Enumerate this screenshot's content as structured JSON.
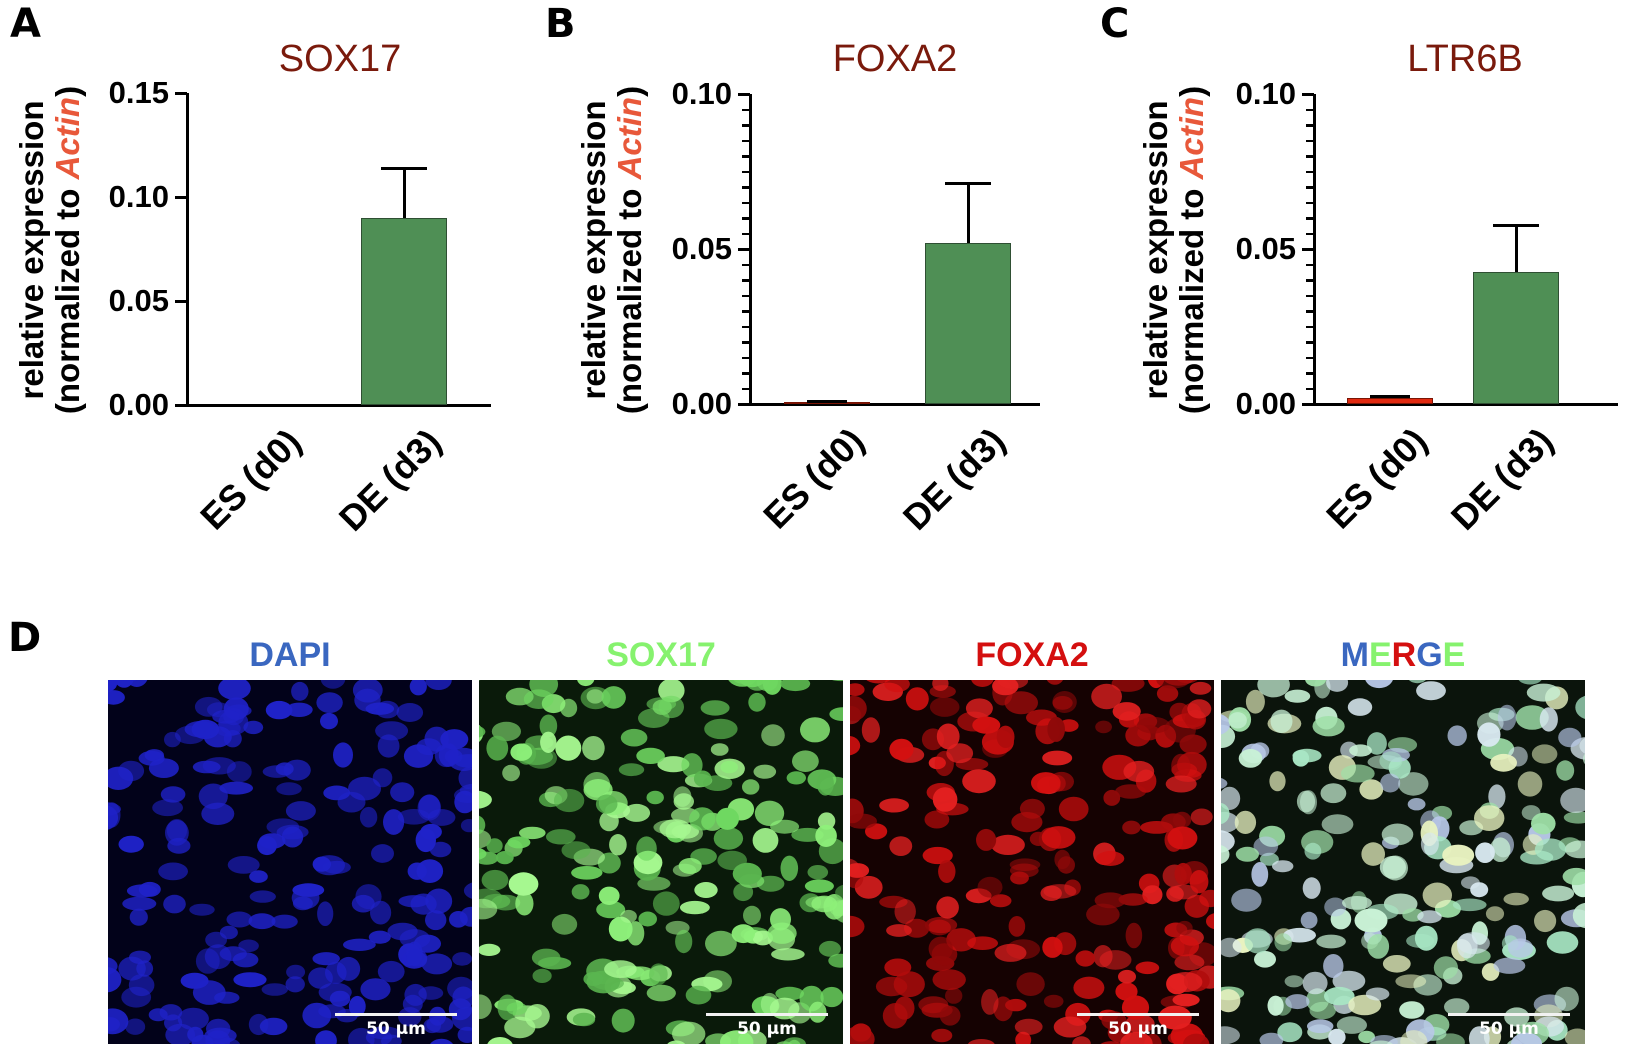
{
  "figure": {
    "panel_letters": [
      "A",
      "B",
      "C",
      "D"
    ],
    "ylabel_line1": "relative expression",
    "ylabel_line2_prefix": "(normalized to ",
    "ylabel_line2_gene": "Actin",
    "ylabel_line2_suffix": ")",
    "colors": {
      "title": "#7a1a0c",
      "actin": "#e8583a",
      "de_bar": "#4f8f55",
      "es_bar": "#e02a10"
    }
  },
  "chart_data": [
    {
      "type": "bar",
      "panel": "A",
      "title": "SOX17",
      "categories": [
        "ES (d0)",
        "DE (d3)"
      ],
      "values": [
        0.0,
        0.09
      ],
      "error_upper": [
        0.0,
        0.1135
      ],
      "ylabel": "relative expression (normalized to Actin)",
      "xlabel": "",
      "ylim": [
        0,
        0.15
      ],
      "yticks": [
        "0.00",
        "0.05",
        "0.10",
        "0.15"
      ],
      "minor_ticks": false,
      "grid": false,
      "legend": null
    },
    {
      "type": "bar",
      "panel": "B",
      "title": "FOXA2",
      "categories": [
        "ES (d0)",
        "DE (d3)"
      ],
      "values": [
        0.0005,
        0.052
      ],
      "error_upper": [
        0.0007,
        0.071
      ],
      "ylabel": "relative expression (normalized to Actin)",
      "xlabel": "",
      "ylim": [
        0,
        0.1
      ],
      "yticks": [
        "0.00",
        "0.05",
        "0.10"
      ],
      "minor_ticks": true,
      "grid": false,
      "legend": null
    },
    {
      "type": "bar",
      "panel": "C",
      "title": "LTR6B",
      "categories": [
        "ES (d0)",
        "DE (d3)"
      ],
      "values": [
        0.0018,
        0.0425
      ],
      "error_upper": [
        0.0025,
        0.0575
      ],
      "ylabel": "relative expression (normalized to Actin)",
      "xlabel": "",
      "ylim": [
        0,
        0.1
      ],
      "yticks": [
        "0.00",
        "0.05",
        "0.10"
      ],
      "minor_ticks": true,
      "grid": false,
      "legend": null
    }
  ],
  "microscopy": {
    "panel": "D",
    "channels": [
      {
        "label": "DAPI",
        "color": "#3a67c0",
        "stain": "blue"
      },
      {
        "label": "SOX17",
        "color": "#86f26e",
        "stain": "green"
      },
      {
        "label": "FOXA2",
        "color": "#d40f0f",
        "stain": "red"
      },
      {
        "label": "MERGE",
        "letters": [
          {
            "ch": "M",
            "color": "#3a67c0"
          },
          {
            "ch": "E",
            "color": "#86f26e"
          },
          {
            "ch": "R",
            "color": "#d40f0f"
          },
          {
            "ch": "G",
            "color": "#3a67c0"
          },
          {
            "ch": "E",
            "color": "#86f26e"
          }
        ],
        "stain": "merge"
      }
    ],
    "scale_bar": "50 µm"
  }
}
